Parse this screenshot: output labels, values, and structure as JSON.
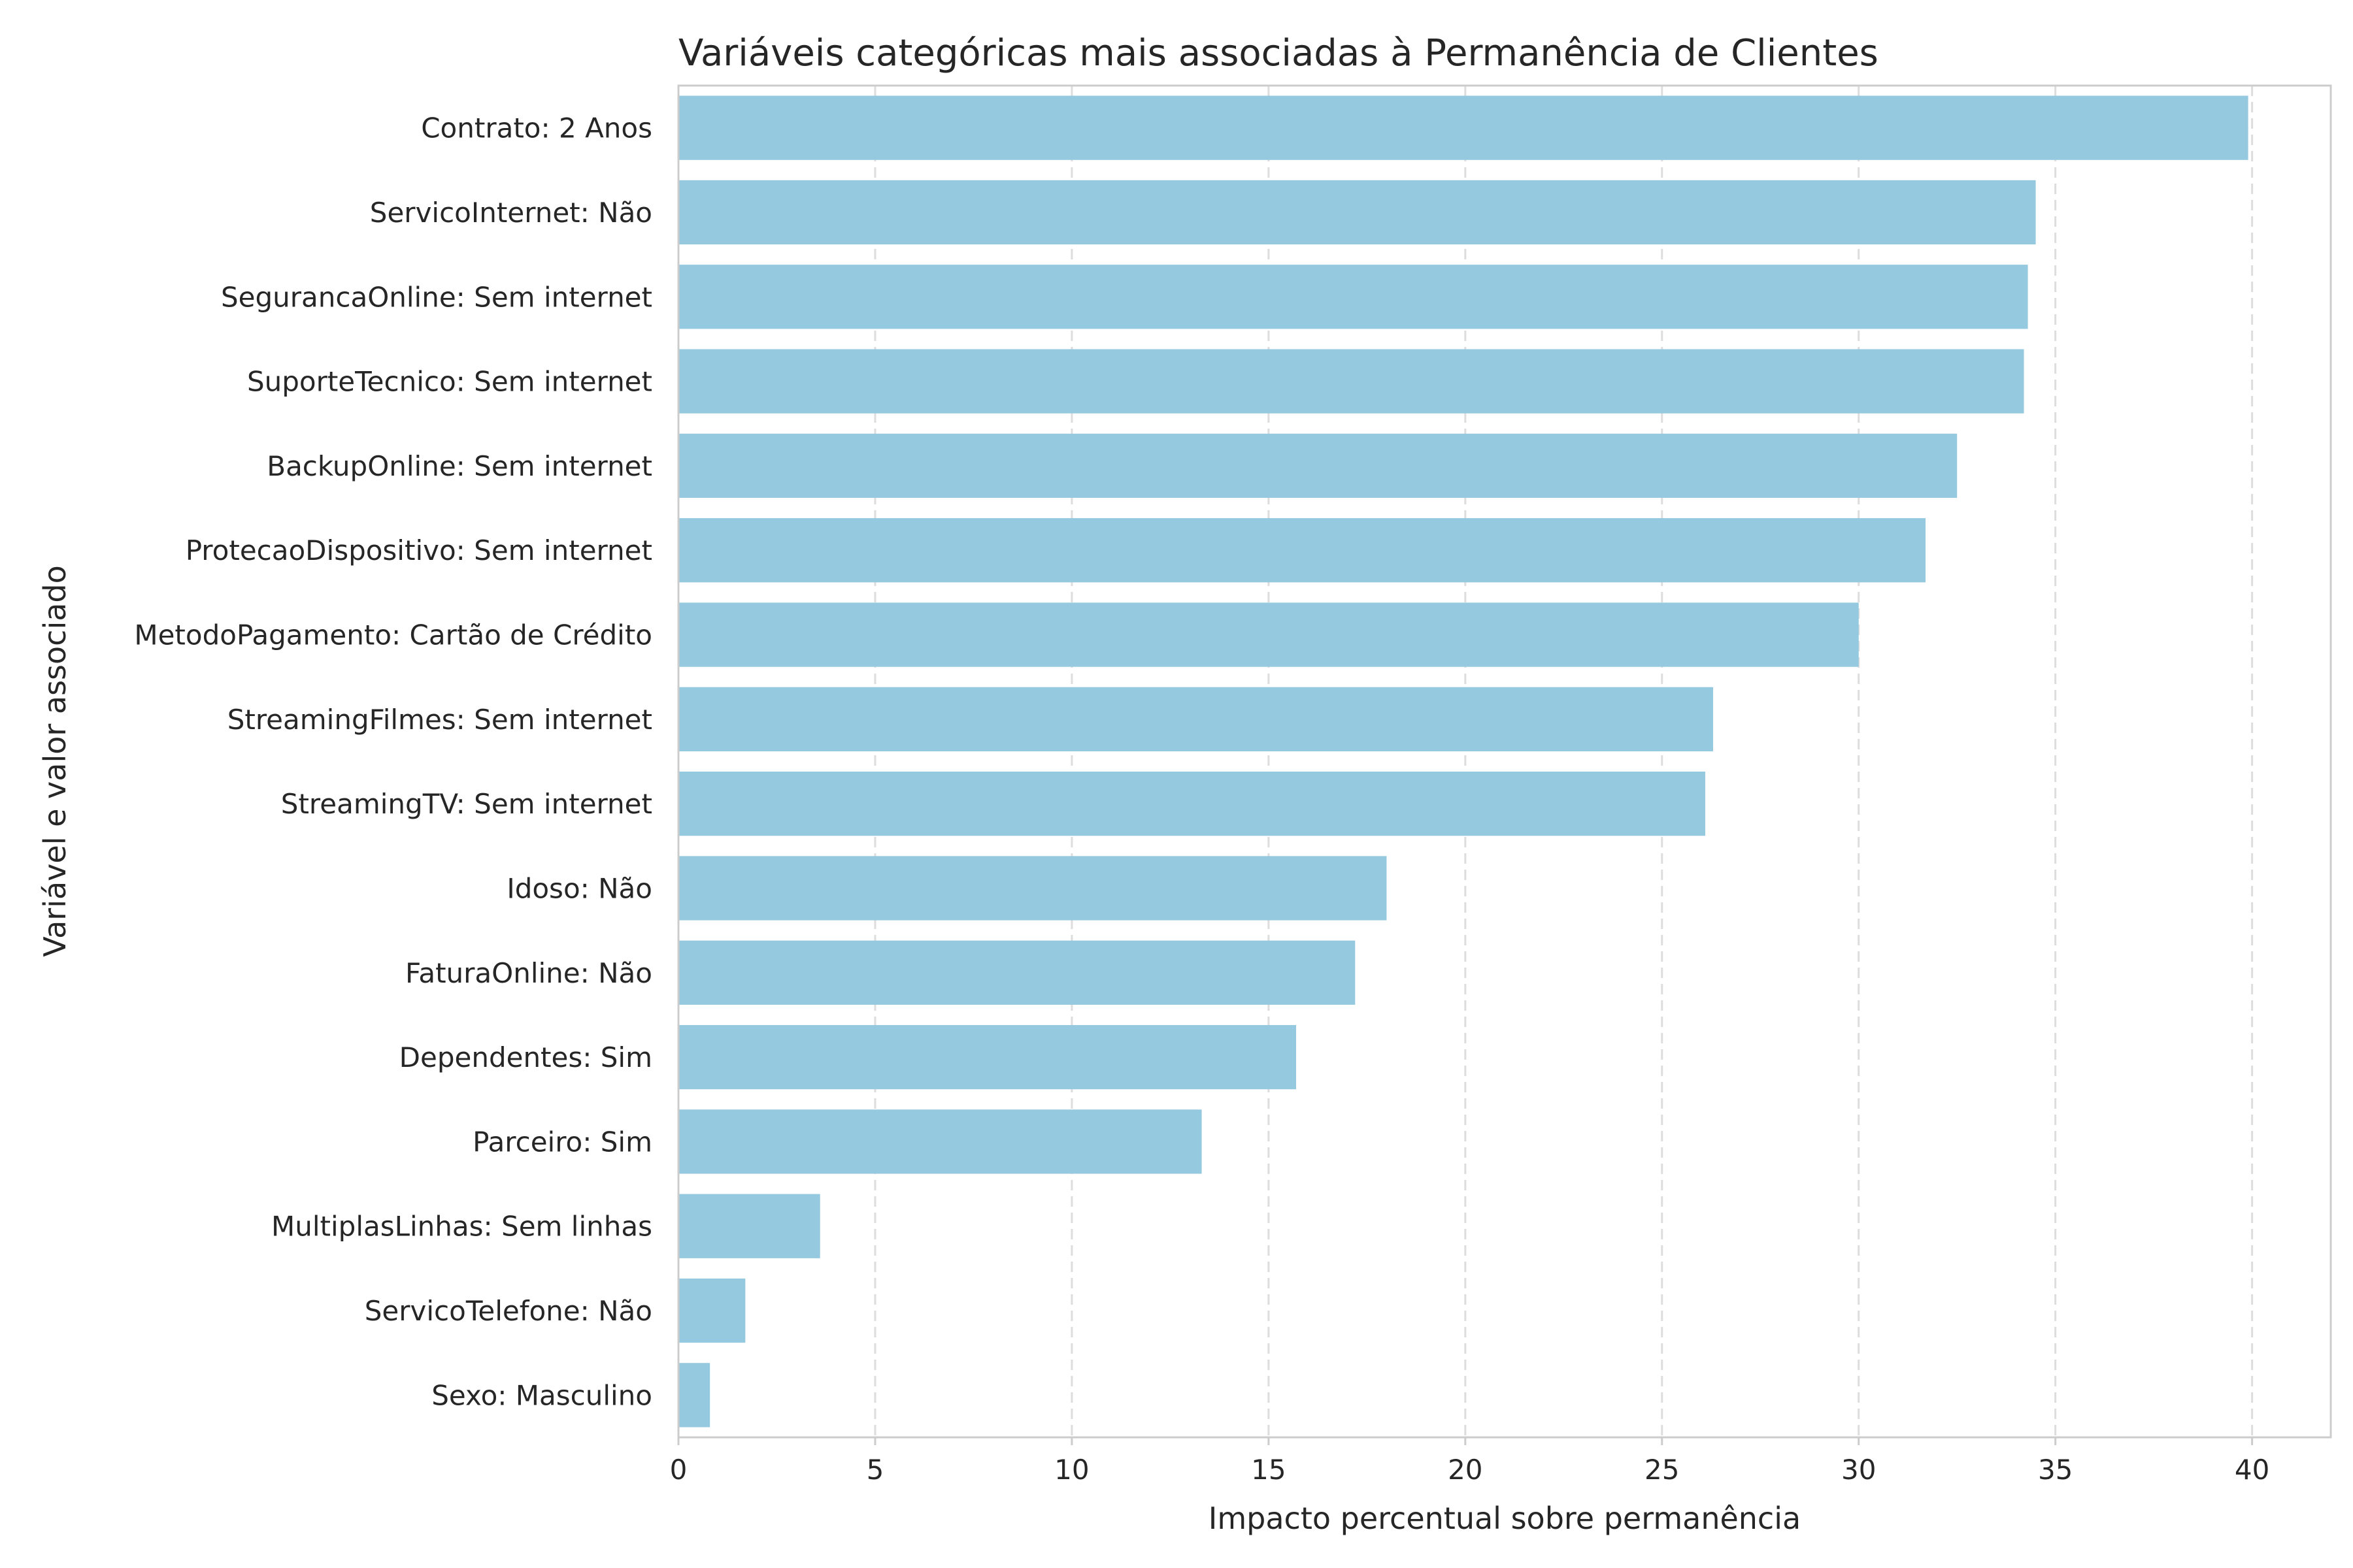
{
  "chart_data": {
    "type": "bar",
    "orientation": "horizontal",
    "title": "Variáveis categóricas mais associadas à Permanência de Clientes",
    "xlabel": "Impacto percentual sobre permanência",
    "ylabel": "Variável e valor associado",
    "xlim": [
      0,
      42
    ],
    "xticks": [
      "0",
      "5",
      "10",
      "15",
      "20",
      "25",
      "30",
      "35",
      "40"
    ],
    "grid": "x-dashed",
    "bar_color": "#95c9df",
    "categories": [
      "Contrato: 2 Anos",
      "ServicoInternet: Não",
      "SegurancaOnline: Sem internet",
      "SuporteTecnico: Sem internet",
      "BackupOnline: Sem internet",
      "ProtecaoDispositivo: Sem internet",
      "MetodoPagamento: Cartão de Crédito",
      "StreamingFilmes: Sem internet",
      "StreamingTV: Sem internet",
      "Idoso: Não",
      "FaturaOnline: Não",
      "Dependentes: Sim",
      "Parceiro: Sim",
      "MultiplasLinhas: Sem linhas",
      "ServicoTelefone: Não",
      "Sexo: Masculino"
    ],
    "values": [
      39.9,
      34.5,
      34.3,
      34.2,
      32.5,
      31.7,
      30.0,
      26.3,
      26.1,
      18.0,
      17.2,
      15.7,
      13.3,
      3.6,
      1.7,
      0.8
    ]
  }
}
